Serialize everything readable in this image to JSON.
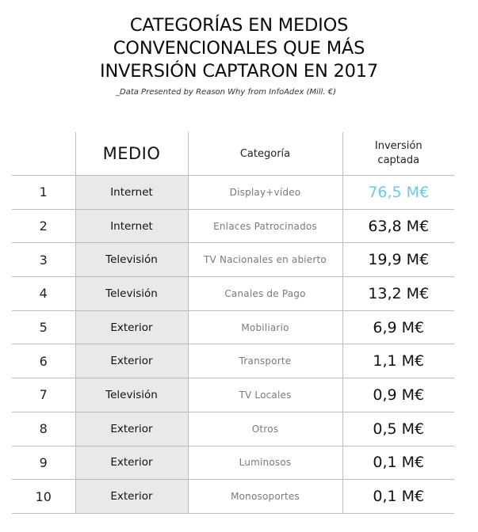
{
  "title_lines": [
    "CATEGORÍAS EN MEDIOS",
    "CONVENCIONALES QUE MÁS",
    "INVERSIÓN CAPTARON EN 2017"
  ],
  "subtitle": "_Data Presented by Reason Why from InfoAdex (Mill. €)",
  "colors": {
    "highlight": "#6ec8e8",
    "medio_cell_bg": "#e9e9e9",
    "grid_line": "#bdbdbd"
  },
  "table": {
    "headers": {
      "rank": "",
      "medio": "MEDIO",
      "categoria": "Categoría",
      "inversion_line1": "Inversión",
      "inversion_line2": "captada"
    },
    "rows": [
      {
        "rank": "1",
        "medio": "Internet",
        "categoria": "Display+vídeo",
        "inversion": "76,5 M€",
        "highlight": true
      },
      {
        "rank": "2",
        "medio": "Internet",
        "categoria": "Enlaces Patrocinados",
        "inversion": "63,8 M€",
        "highlight": false
      },
      {
        "rank": "3",
        "medio": "Televisión",
        "categoria": "TV Nacionales en abierto",
        "inversion": "19,9 M€",
        "highlight": false
      },
      {
        "rank": "4",
        "medio": "Televisión",
        "categoria": "Canales de Pago",
        "inversion": "13,2 M€",
        "highlight": false
      },
      {
        "rank": "5",
        "medio": "Exterior",
        "categoria": "Mobiliario",
        "inversion": "6,9 M€",
        "highlight": false
      },
      {
        "rank": "6",
        "medio": "Exterior",
        "categoria": "Transporte",
        "inversion": "1,1 M€",
        "highlight": false
      },
      {
        "rank": "7",
        "medio": "Televisión",
        "categoria": "TV Locales",
        "inversion": "0,9 M€",
        "highlight": false
      },
      {
        "rank": "8",
        "medio": "Exterior",
        "categoria": "Otros",
        "inversion": "0,5 M€",
        "highlight": false
      },
      {
        "rank": "9",
        "medio": "Exterior",
        "categoria": "Luminosos",
        "inversion": "0,1 M€",
        "highlight": false
      },
      {
        "rank": "10",
        "medio": "Exterior",
        "categoria": "Monosoportes",
        "inversion": "0,1 M€",
        "highlight": false
      }
    ]
  }
}
